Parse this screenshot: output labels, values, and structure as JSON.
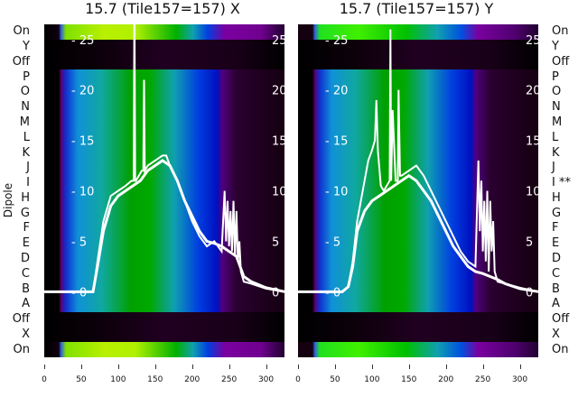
{
  "chart_data": [
    {
      "type": "heatmap",
      "title": "15.7 (Tile157=157) X",
      "ylabel": "Dipole",
      "row_labels": [
        "On",
        "Y",
        "Off",
        "P",
        "O",
        "N",
        "M",
        "L",
        "K",
        "J",
        "I",
        "H",
        "G",
        "F",
        "E",
        "D",
        "C",
        "B",
        "A",
        "Off",
        "X",
        "On"
      ],
      "xticks": [
        "0",
        "50",
        "100",
        "150",
        "200",
        "250",
        "300"
      ],
      "xlim": [
        0,
        325
      ],
      "overlay_yticks": [
        "0",
        "5",
        "10",
        "15",
        "20",
        "25"
      ],
      "overlay_ylim": [
        -6.5,
        26.5
      ],
      "active_rows": [
        "X",
        "On"
      ],
      "series": [
        {
          "name": "trace1",
          "x": [
            0,
            60,
            66,
            72,
            80,
            90,
            100,
            110,
            118,
            121,
            122,
            123,
            124,
            128,
            132,
            134,
            135,
            136,
            140,
            150,
            160,
            165,
            170,
            180,
            190,
            200,
            210,
            220,
            230,
            240,
            244,
            246,
            248,
            250,
            252,
            254,
            256,
            258,
            260,
            262,
            264,
            266,
            268,
            270,
            280,
            300,
            325
          ],
          "y": [
            0,
            0,
            0,
            3,
            7,
            9.5,
            10,
            10.5,
            11,
            11,
            30,
            11,
            11,
            11.5,
            12,
            12,
            21,
            12,
            12.5,
            13,
            13.5,
            13.5,
            12.5,
            11,
            9,
            7,
            5.5,
            4.5,
            5,
            4,
            10,
            5,
            9,
            4.5,
            8,
            4,
            9,
            3.5,
            8,
            3,
            5,
            2,
            1.5,
            1,
            0.8,
            0.3,
            0
          ]
        },
        {
          "name": "trace2",
          "x": [
            0,
            60,
            66,
            72,
            80,
            90,
            100,
            110,
            120,
            130,
            140,
            150,
            160,
            170,
            180,
            190,
            200,
            210,
            220,
            230,
            240,
            250,
            260,
            270,
            280,
            300,
            325
          ],
          "y": [
            0,
            0,
            0,
            2.5,
            6,
            8.5,
            9.5,
            10,
            10.5,
            11,
            12,
            12.5,
            13,
            12.5,
            11,
            9,
            7.5,
            6,
            5,
            4.8,
            4.5,
            4,
            3.5,
            1.5,
            1,
            0.4,
            0
          ]
        }
      ]
    },
    {
      "type": "heatmap",
      "title": "15.7 (Tile157=157) Y",
      "row_labels": [
        "On",
        "Y",
        "Off",
        "P",
        "O",
        "N",
        "M",
        "L",
        "K",
        "J",
        "I **",
        "H",
        "G",
        "F",
        "E",
        "D",
        "C",
        "B",
        "A",
        "Off",
        "X",
        "On"
      ],
      "xticks": [
        "0",
        "50",
        "100",
        "150",
        "200",
        "250",
        "300"
      ],
      "xlim": [
        0,
        325
      ],
      "overlay_yticks": [
        "0",
        "5",
        "10",
        "15",
        "20",
        "25"
      ],
      "overlay_ylim": [
        -6.5,
        26.5
      ],
      "active_rows": [
        "Y",
        "On"
      ],
      "series": [
        {
          "name": "trace1",
          "x": [
            0,
            60,
            68,
            74,
            80,
            90,
            95,
            100,
            104,
            106,
            108,
            112,
            116,
            120,
            124,
            125,
            126,
            128,
            132,
            135,
            136,
            138,
            140,
            150,
            160,
            170,
            180,
            190,
            200,
            210,
            220,
            230,
            240,
            244,
            246,
            248,
            250,
            252,
            254,
            256,
            258,
            260,
            262,
            264,
            266,
            270,
            280,
            300,
            325
          ],
          "y": [
            0,
            0,
            0.5,
            3,
            7,
            11,
            13,
            14,
            15,
            19,
            14,
            10.5,
            10,
            10.5,
            11,
            26,
            11,
            18,
            11,
            11,
            20,
            11.5,
            11.5,
            12,
            12.5,
            11.5,
            10,
            8.5,
            7,
            5.5,
            4,
            3,
            2.5,
            13,
            6,
            11,
            4,
            9,
            3,
            10,
            2,
            9,
            4,
            7,
            2,
            1,
            0.8,
            0.4,
            0
          ]
        },
        {
          "name": "trace2",
          "x": [
            0,
            60,
            68,
            74,
            80,
            90,
            100,
            110,
            120,
            130,
            140,
            150,
            160,
            170,
            180,
            190,
            200,
            210,
            220,
            230,
            240,
            250,
            260,
            270,
            280,
            300,
            325
          ],
          "y": [
            0,
            0,
            0.5,
            2.5,
            6,
            8,
            9,
            9.5,
            10,
            10.5,
            11,
            11.5,
            11,
            10,
            9,
            7.5,
            6,
            4.5,
            3.5,
            2.5,
            2,
            1.8,
            1.5,
            1.2,
            0.8,
            0.3,
            0
          ]
        }
      ]
    }
  ]
}
